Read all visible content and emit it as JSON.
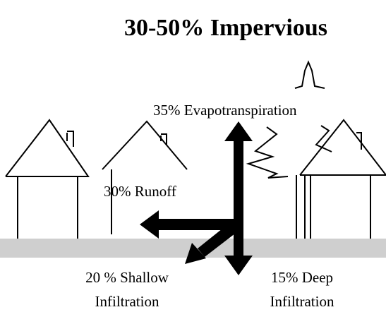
{
  "title": "30-50% Impervious",
  "labels": {
    "evapotranspiration": [
      "35% Evapotranspiration"
    ],
    "runoff": [
      "30% Runoff"
    ],
    "shallow_infiltration": [
      "20 % Shallow",
      "Infiltration"
    ],
    "deep_infiltration": [
      "15% Deep",
      "Infiltration"
    ]
  }
}
